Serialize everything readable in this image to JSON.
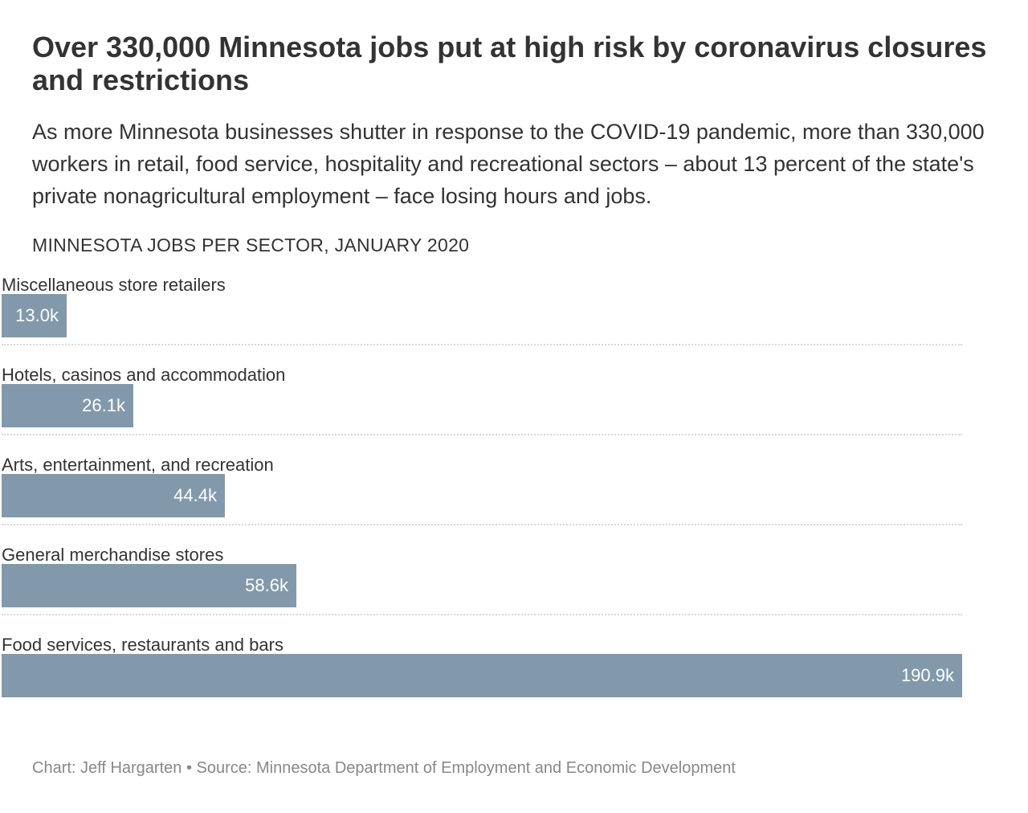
{
  "header": {
    "title": "Over 330,000 Minnesota jobs put at high risk by coronavirus closures and restrictions",
    "subtitle": "As more Minnesota businesses shutter in response to the COVID-19 pandemic, more than 330,000 workers in retail, food service, hospitality and recreational sectors – about 13 percent of the state's private nonagricultural employment – face losing hours and jobs.",
    "chart_heading": "MINNESOTA JOBS PER SECTOR, JANUARY 2020"
  },
  "colors": {
    "bar": "#8199ab",
    "value_text": "#ffffff"
  },
  "chart_data": {
    "type": "bar",
    "orientation": "horizontal",
    "title": "MINNESOTA JOBS PER SECTOR, JANUARY 2020",
    "categories": [
      "Miscellaneous store retailers",
      "Hotels, casinos and accommodation",
      "Arts, entertainment, and recreation",
      "General merchandise stores",
      "Food services, restaurants and bars"
    ],
    "values": [
      13.0,
      26.1,
      44.4,
      58.6,
      190.9
    ],
    "value_labels": [
      "13.0k",
      "26.1k",
      "44.4k",
      "58.6k",
      "190.9k"
    ],
    "xlim": [
      0,
      190.9
    ],
    "grid": false
  },
  "footer": {
    "credit": "Chart: Jeff Hargarten • Source: Minnesota Department of Employment and Economic Development"
  }
}
